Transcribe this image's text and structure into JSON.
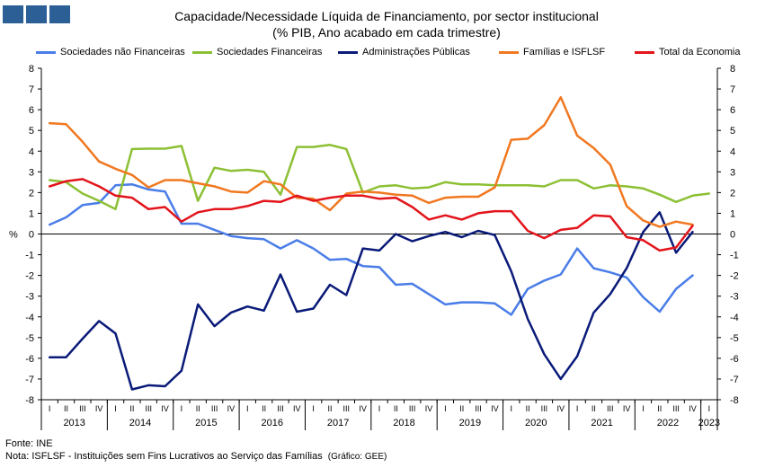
{
  "title_line1": "Capacidade/Necessidade Líquida de Financiamento,  por sector institucional",
  "title_line2": "(% PIB, Ano acabado em cada trimestre)",
  "source": "Fonte: INE",
  "note": "Nota: ISFLSF - Instituições sem Fins Lucrativos ao Serviço das Famílias",
  "credit": "(Gráfico: GEE)",
  "logo_color": "#2b5f96",
  "chart_data": {
    "type": "line",
    "ylabel": "%",
    "ylim": [
      -8,
      8
    ],
    "yticks": [
      -8,
      -7,
      -6,
      -5,
      -4,
      -3,
      -2,
      -1,
      0,
      1,
      2,
      3,
      4,
      5,
      6,
      7,
      8
    ],
    "grid": false,
    "legend_position": "top",
    "quarter_labels": [
      "I",
      "II",
      "III",
      "IV"
    ],
    "years": [
      "2013",
      "2014",
      "2015",
      "2016",
      "2017",
      "2018",
      "2019",
      "2020",
      "2021",
      "2022",
      "2023"
    ],
    "x": [
      "2013-I",
      "2013-II",
      "2013-III",
      "2013-IV",
      "2014-I",
      "2014-II",
      "2014-III",
      "2014-IV",
      "2015-I",
      "2015-II",
      "2015-III",
      "2015-IV",
      "2016-I",
      "2016-II",
      "2016-III",
      "2016-IV",
      "2017-I",
      "2017-II",
      "2017-III",
      "2017-IV",
      "2018-I",
      "2018-II",
      "2018-III",
      "2018-IV",
      "2019-I",
      "2019-II",
      "2019-III",
      "2019-IV",
      "2020-I",
      "2020-II",
      "2020-III",
      "2020-IV",
      "2021-I",
      "2021-II",
      "2021-III",
      "2021-IV",
      "2022-I",
      "2022-II",
      "2022-III",
      "2022-IV",
      "2023-I"
    ],
    "series": [
      {
        "name": "Sociedades não Financeiras",
        "color": "#4a7de8",
        "values": [
          0.45,
          0.8,
          1.4,
          1.5,
          2.35,
          2.4,
          2.15,
          2.05,
          0.5,
          0.5,
          0.2,
          -0.1,
          -0.2,
          -0.25,
          -0.7,
          -0.3,
          -0.7,
          -1.25,
          -1.2,
          -1.55,
          -1.6,
          -2.45,
          -2.4,
          -2.9,
          -3.4,
          -3.3,
          -3.3,
          -3.35,
          -3.9,
          -2.65,
          -2.25,
          -1.95,
          -0.7,
          -1.65,
          -1.85,
          -2.1,
          -3.05,
          -3.75,
          -2.65,
          -2.0,
          null
        ]
      },
      {
        "name": "Sociedades Financeiras",
        "color": "#8cc034",
        "values": [
          2.6,
          2.5,
          1.95,
          1.6,
          1.2,
          4.1,
          4.12,
          4.12,
          4.25,
          1.6,
          3.2,
          3.05,
          3.1,
          3.0,
          1.9,
          4.2,
          4.2,
          4.3,
          4.1,
          2.0,
          2.3,
          2.35,
          2.2,
          2.25,
          2.5,
          2.4,
          2.4,
          2.35,
          2.35,
          2.35,
          2.3,
          2.6,
          2.6,
          2.2,
          2.35,
          2.3,
          2.2,
          1.9,
          1.55,
          1.85,
          1.95
        ]
      },
      {
        "name": "Administrações Públicas",
        "color": "#0a1a78",
        "values": [
          -5.95,
          -5.95,
          -5.05,
          -4.2,
          -4.8,
          -7.5,
          -7.3,
          -7.35,
          -6.6,
          -3.4,
          -4.45,
          -3.8,
          -3.5,
          -3.7,
          -1.95,
          -3.75,
          -3.6,
          -2.45,
          -2.95,
          -0.7,
          -0.8,
          0.0,
          -0.35,
          -0.1,
          0.1,
          -0.15,
          0.15,
          -0.05,
          -1.8,
          -4.1,
          -5.8,
          -7.0,
          -5.9,
          -3.8,
          -2.9,
          -1.65,
          0.1,
          1.05,
          -0.9,
          0.1,
          null
        ]
      },
      {
        "name": "Famílias e ISFLSF",
        "color": "#f07820",
        "values": [
          5.35,
          5.3,
          4.45,
          3.5,
          3.15,
          2.85,
          2.25,
          2.6,
          2.6,
          2.45,
          2.3,
          2.05,
          2.0,
          2.55,
          2.4,
          1.75,
          1.7,
          1.15,
          1.95,
          2.05,
          2.0,
          1.9,
          1.85,
          1.5,
          1.75,
          1.8,
          1.8,
          2.25,
          4.55,
          4.6,
          5.25,
          6.6,
          4.75,
          4.15,
          3.35,
          1.35,
          0.65,
          0.35,
          0.6,
          0.45,
          null
        ]
      },
      {
        "name": "Total da Economia",
        "color": "#e3141b",
        "values": [
          2.3,
          2.55,
          2.65,
          2.3,
          1.85,
          1.75,
          1.2,
          1.3,
          0.6,
          1.05,
          1.2,
          1.2,
          1.35,
          1.6,
          1.55,
          1.85,
          1.6,
          1.75,
          1.85,
          1.85,
          1.7,
          1.75,
          1.3,
          0.7,
          0.9,
          0.7,
          1.0,
          1.1,
          1.1,
          0.15,
          -0.2,
          0.2,
          0.3,
          0.9,
          0.85,
          -0.15,
          -0.3,
          -0.8,
          -0.65,
          0.4,
          null
        ]
      }
    ]
  }
}
